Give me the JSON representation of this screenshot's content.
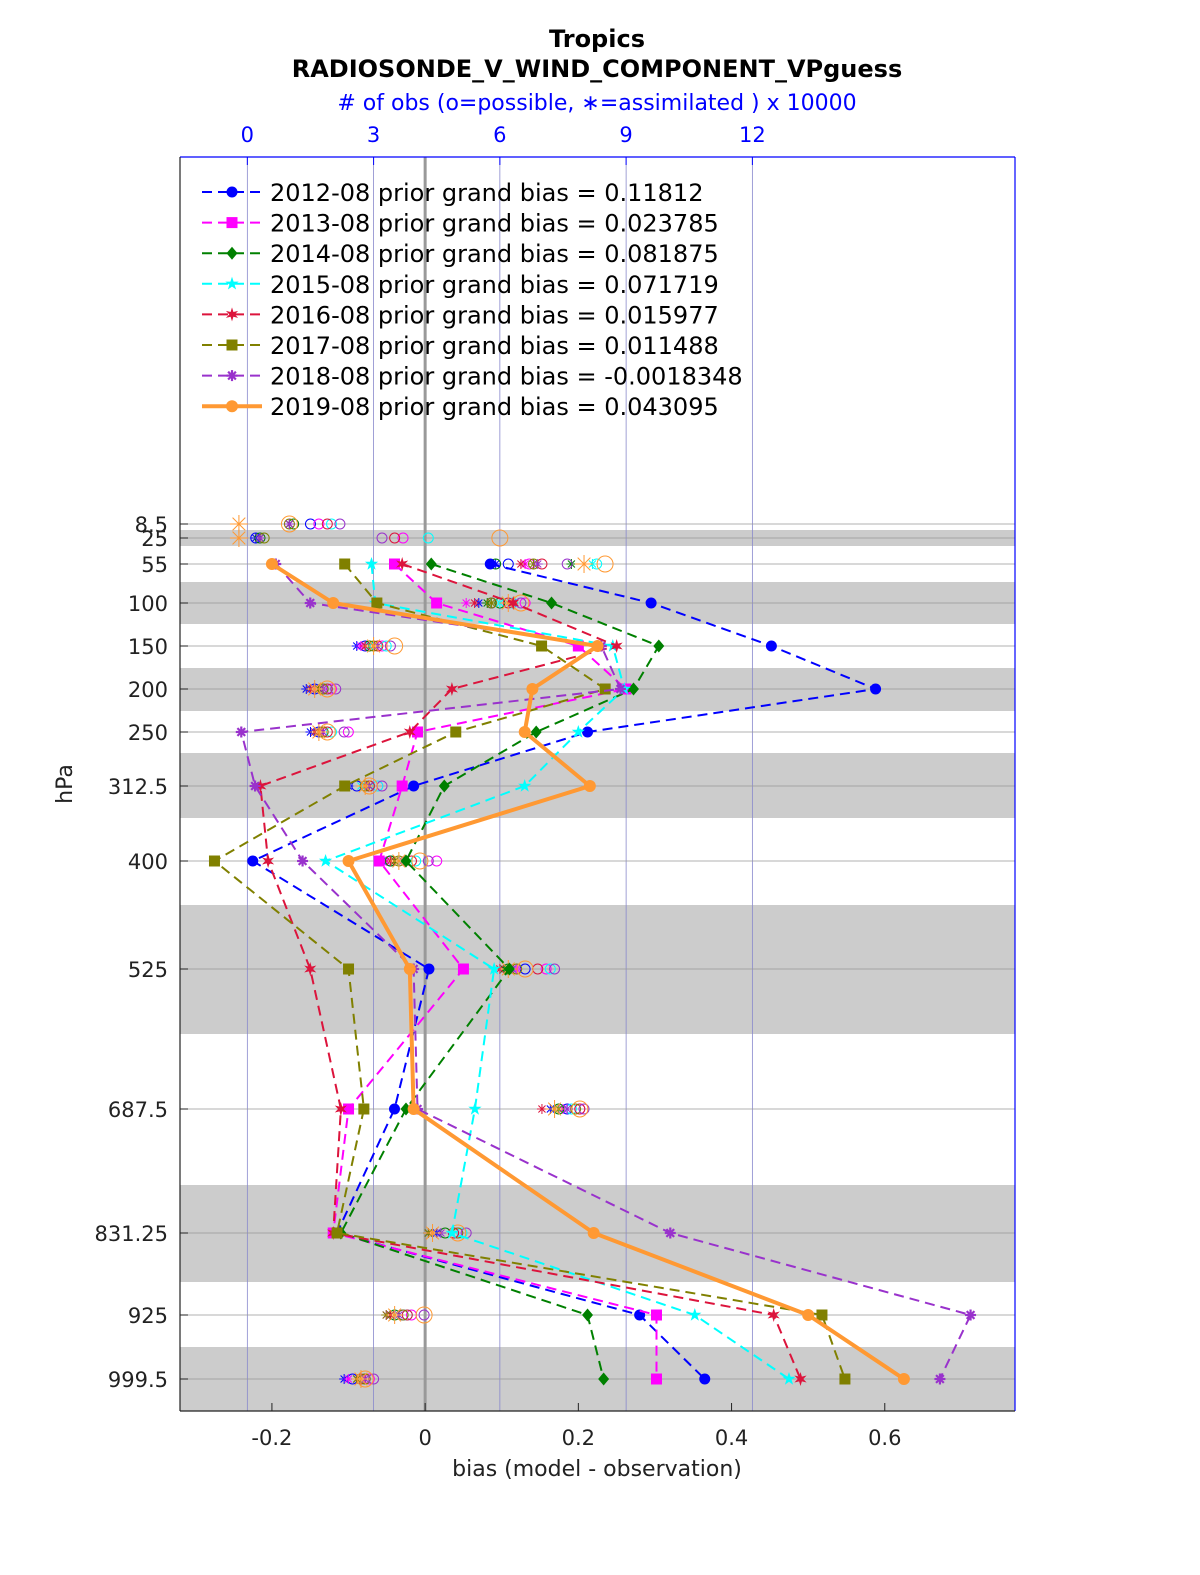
{
  "chart_data": {
    "type": "line",
    "title": "Tropics",
    "subtitle": "RADIOSONDE_V_WIND_COMPONENT_VPguess",
    "xlabel": "bias (model - observation)",
    "ylabel": "hPa",
    "top_xlabel": "# of obs (o=possible, ∗=assimilated ) x 10000",
    "xlim": [
      -0.32,
      0.77
    ],
    "xticks": [
      -0.2,
      0,
      0.2,
      0.4,
      0.6
    ],
    "xtick_labels": [
      "-0.2",
      "0",
      "0.2",
      "0.4",
      "0.6"
    ],
    "top_xlim": [
      -1.6,
      18.24
    ],
    "top_xticks": [
      0,
      3,
      6,
      9,
      12
    ],
    "top_xtick_labels": [
      "0",
      "3",
      "6",
      "9",
      "12"
    ],
    "y_levels": [
      8.5,
      25,
      55,
      100,
      150,
      200,
      250,
      312.5,
      400,
      525,
      687.5,
      831.25,
      925,
      999.5
    ],
    "ytick_labels": [
      "8.5",
      "25",
      "55",
      "100",
      "150",
      "200",
      "250",
      "312.5",
      "400",
      "525",
      "687.5",
      "831.25",
      "925",
      "999.5"
    ],
    "grid": true,
    "legend_position": "top-left",
    "series": [
      {
        "name": "2012-08 prior grand bias = 0.11812",
        "color": "#0000ff",
        "marker": "circle",
        "style": "dashed",
        "levels": [
          55,
          100,
          150,
          200,
          250,
          312.5,
          400,
          525,
          687.5,
          831.25,
          925,
          999.5
        ],
        "values": [
          0.085,
          0.295,
          0.452,
          0.588,
          0.212,
          -0.015,
          -0.225,
          0.005,
          -0.04,
          -0.115,
          0.28,
          0.365
        ]
      },
      {
        "name": "2013-08 prior grand bias = 0.023785",
        "color": "#ff00ff",
        "marker": "square",
        "style": "dashed",
        "levels": [
          55,
          100,
          150,
          200,
          250,
          312.5,
          400,
          525,
          687.5,
          831.25,
          925,
          999.5
        ],
        "values": [
          -0.04,
          0.015,
          0.2,
          0.262,
          -0.01,
          -0.03,
          -0.06,
          0.05,
          -0.1,
          -0.12,
          0.302,
          0.302
        ]
      },
      {
        "name": "2014-08 prior grand bias = 0.081875",
        "color": "#008000",
        "marker": "diamond",
        "style": "dashed",
        "levels": [
          55,
          100,
          150,
          200,
          250,
          312.5,
          400,
          525,
          687.5,
          831.25,
          925,
          999.5
        ],
        "values": [
          0.008,
          0.165,
          0.305,
          0.272,
          0.145,
          0.025,
          -0.025,
          0.11,
          -0.025,
          -0.11,
          0.212,
          0.233
        ]
      },
      {
        "name": "2015-08 prior grand bias = 0.071719",
        "color": "#00ffff",
        "marker": "star",
        "style": "dashed",
        "levels": [
          55,
          100,
          150,
          200,
          250,
          312.5,
          400,
          525,
          687.5,
          831.25,
          925,
          999.5
        ],
        "values": [
          -0.07,
          -0.065,
          0.245,
          0.26,
          0.2,
          0.13,
          -0.13,
          0.09,
          0.065,
          0.035,
          0.352,
          0.475
        ]
      },
      {
        "name": "2016-08 prior grand bias = 0.015977",
        "color": "#dc143c",
        "marker": "star6",
        "style": "dashed",
        "levels": [
          55,
          100,
          150,
          200,
          250,
          312.5,
          400,
          525,
          687.5,
          831.25,
          925,
          999.5
        ],
        "values": [
          -0.03,
          0.115,
          0.25,
          0.035,
          -0.02,
          -0.215,
          -0.205,
          -0.15,
          -0.11,
          -0.12,
          0.455,
          0.49
        ]
      },
      {
        "name": "2017-08 prior grand bias = 0.011488",
        "color": "#808000",
        "marker": "square",
        "style": "dashed",
        "levels": [
          55,
          100,
          150,
          200,
          250,
          312.5,
          400,
          525,
          687.5,
          831.25,
          925,
          999.5
        ],
        "values": [
          -0.105,
          -0.063,
          0.152,
          0.235,
          0.04,
          -0.105,
          -0.275,
          -0.1,
          -0.08,
          -0.115,
          0.518,
          0.548
        ]
      },
      {
        "name": "2018-08 prior grand bias = -0.0018348",
        "color": "#9932cc",
        "marker": "asterisk",
        "style": "dashed",
        "levels": [
          55,
          100,
          150,
          200,
          250,
          312.5,
          400,
          525,
          687.5,
          831.25,
          925,
          999.5
        ],
        "values": [
          -0.195,
          -0.15,
          0.23,
          0.255,
          -0.24,
          -0.222,
          -0.16,
          -0.015,
          -0.01,
          0.32,
          0.712,
          0.672
        ]
      },
      {
        "name": "2019-08 prior grand bias = 0.043095",
        "color": "#ff9933",
        "marker": "circle",
        "style": "solid",
        "levels": [
          55,
          100,
          150,
          200,
          250,
          312.5,
          400,
          525,
          687.5,
          831.25,
          925,
          999.5
        ],
        "values": [
          -0.2,
          -0.12,
          0.225,
          0.14,
          0.13,
          0.215,
          -0.1,
          -0.02,
          -0.015,
          0.22,
          0.5,
          0.625
        ]
      }
    ],
    "obs_counts": {
      "description_levels": "top axis x 10000",
      "levels": [
        8.5,
        25,
        55,
        100,
        150,
        200,
        250,
        312.5,
        400,
        525,
        687.5,
        831.25,
        925,
        999.5
      ],
      "possible": {
        "2012-08": [
          1.5,
          0.2,
          6.2,
          5.8,
          2.8,
          1.6,
          1.7,
          2.6,
          3.4,
          6.6,
          7.6,
          4.9,
          3.7,
          2.5
        ],
        "2013-08": [
          1.7,
          3.7,
          6.7,
          6.6,
          3.2,
          2.0,
          2.4,
          3.1,
          4.5,
          7.1,
          7.9,
          5.0,
          3.9,
          2.9
        ],
        "2014-08": [
          1.1,
          0.3,
          5.9,
          6.0,
          2.9,
          1.8,
          1.8,
          2.9,
          3.4,
          6.2,
          7.4,
          4.7,
          3.5,
          2.8
        ],
        "2015-08": [
          2.0,
          4.3,
          8.3,
          6.3,
          3.3,
          1.9,
          2.0,
          3.1,
          4.0,
          7.2,
          7.7,
          5.1,
          3.8,
          2.7
        ],
        "2016-08": [
          1.9,
          3.5,
          7.0,
          6.2,
          3.1,
          1.9,
          1.9,
          2.9,
          3.9,
          6.9,
          7.9,
          4.9,
          3.8,
          2.7
        ],
        "2017-08": [
          1.0,
          0.4,
          6.8,
          5.8,
          3.0,
          1.8,
          1.8,
          2.8,
          3.6,
          6.4,
          7.8,
          5.0,
          3.7,
          2.8
        ],
        "2018-08": [
          2.2,
          3.2,
          7.6,
          6.5,
          3.4,
          2.1,
          2.3,
          3.2,
          4.3,
          7.3,
          8.0,
          5.2,
          4.2,
          3.0
        ],
        "2019-08": [
          1.0,
          6.0,
          8.5,
          6.5,
          3.5,
          1.9,
          1.9,
          2.9,
          4.1,
          6.6,
          7.9,
          5.0,
          4.2,
          2.8
        ]
      },
      "assimilated": {
        "2012-08": [
          1.0,
          0.2,
          5.9,
          5.5,
          2.6,
          1.4,
          1.5,
          2.4,
          3.2,
          6.2,
          7.2,
          4.5,
          3.4,
          2.3
        ],
        "2013-08": [
          1.0,
          0.3,
          6.6,
          5.2,
          2.7,
          1.6,
          1.8,
          2.8,
          3.3,
          6.4,
          7.5,
          4.3,
          3.3,
          2.4
        ],
        "2014-08": [
          1.0,
          0.3,
          7.7,
          5.7,
          3.0,
          1.7,
          1.7,
          2.9,
          3.5,
          6.1,
          7.3,
          4.3,
          3.4,
          2.6
        ],
        "2015-08": [
          1.0,
          0.3,
          8.2,
          6.0,
          2.9,
          1.5,
          1.6,
          2.7,
          3.6,
          6.3,
          7.4,
          4.4,
          3.5,
          2.6
        ],
        "2016-08": [
          1.0,
          0.3,
          6.5,
          5.4,
          2.8,
          1.5,
          1.6,
          2.8,
          3.4,
          6.0,
          7.0,
          4.4,
          3.4,
          2.6
        ],
        "2017-08": [
          1.0,
          0.3,
          6.8,
          5.8,
          3.0,
          1.7,
          1.7,
          2.8,
          3.5,
          6.2,
          7.4,
          4.3,
          3.3,
          2.6
        ],
        "2018-08": [
          1.0,
          0.3,
          6.9,
          6.3,
          3.1,
          1.8,
          1.8,
          2.9,
          3.7,
          6.3,
          7.6,
          4.6,
          3.6,
          2.8
        ],
        "2019-08": [
          -0.2,
          -0.2,
          8.0,
          6.2,
          3.0,
          1.6,
          1.7,
          2.8,
          3.6,
          6.2,
          7.3,
          4.4,
          3.5,
          2.7
        ]
      }
    }
  }
}
